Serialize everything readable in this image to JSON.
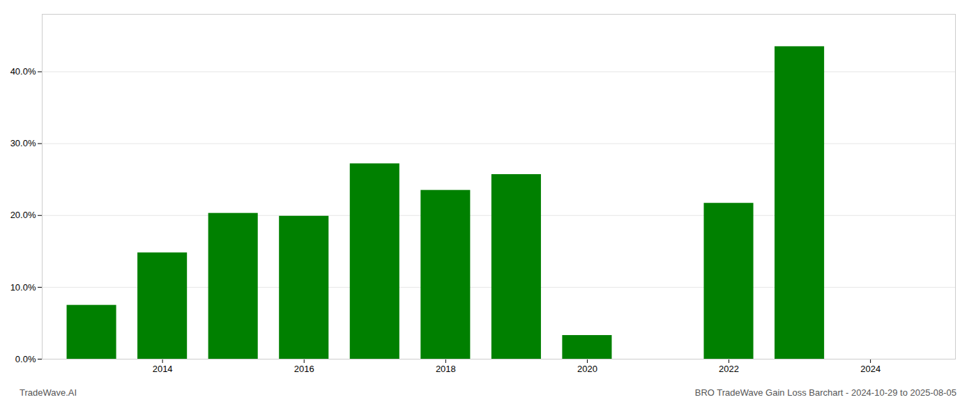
{
  "chart_data": {
    "type": "bar",
    "x": [
      2013,
      2014,
      2015,
      2016,
      2017,
      2018,
      2019,
      2020,
      2022,
      2023
    ],
    "values": [
      0.075,
      0.148,
      0.203,
      0.199,
      0.272,
      0.235,
      0.257,
      0.033,
      0.217,
      0.435
    ],
    "color": "#008000",
    "xlim": [
      2012.3,
      2025.2
    ],
    "xticks": [
      2014,
      2016,
      2018,
      2020,
      2022,
      2024
    ],
    "ylim": [
      0.0,
      0.48
    ],
    "yticks": [
      {
        "value": 0.0,
        "label": "0.0%"
      },
      {
        "value": 0.1,
        "label": "10.0%"
      },
      {
        "value": 0.2,
        "label": "20.0%"
      },
      {
        "value": 0.3,
        "label": "30.0%"
      },
      {
        "value": 0.4,
        "label": "40.0%"
      }
    ],
    "grid": true,
    "annotations": [
      "TradeWave.AI",
      "BRO TradeWave Gain Loss Barchart - 2024-10-29 to 2025-08-05"
    ]
  }
}
